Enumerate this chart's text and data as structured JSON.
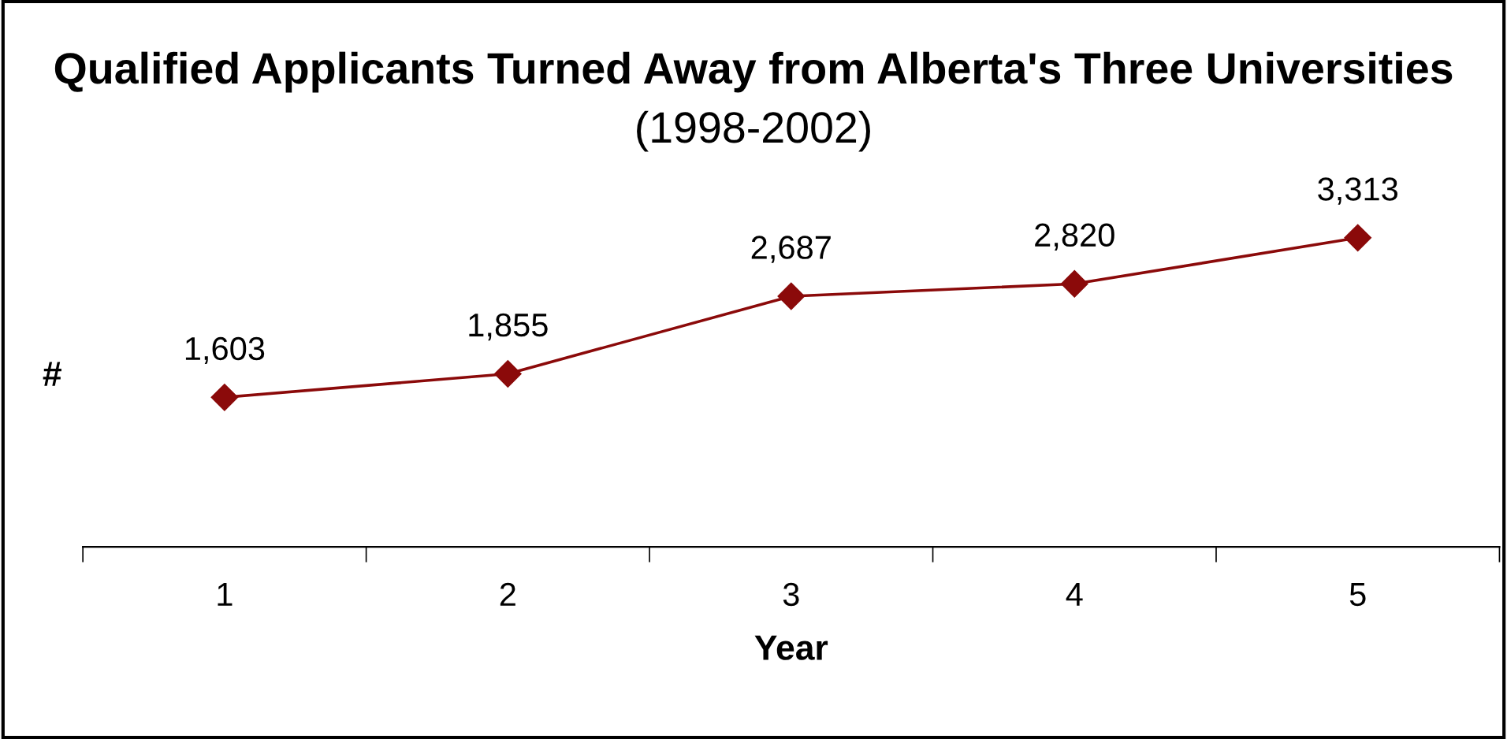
{
  "chart_data": {
    "type": "line",
    "title": "Qualified Applicants Turned Away from Alberta's Three Universities",
    "subtitle": "(1998-2002)",
    "xlabel": "Year",
    "ylabel": "#",
    "categories": [
      "1",
      "2",
      "3",
      "4",
      "5"
    ],
    "series": [
      {
        "color": "#8b0a0a",
        "values": [
          1603,
          1855,
          2687,
          2820,
          3313
        ],
        "value_labels": [
          "1,603",
          "1,855",
          "2,687",
          "2,820",
          "3,313"
        ]
      }
    ],
    "marker": "diamond",
    "line_style": "solid",
    "grid": false,
    "legend": false,
    "tick_labels": "x"
  }
}
